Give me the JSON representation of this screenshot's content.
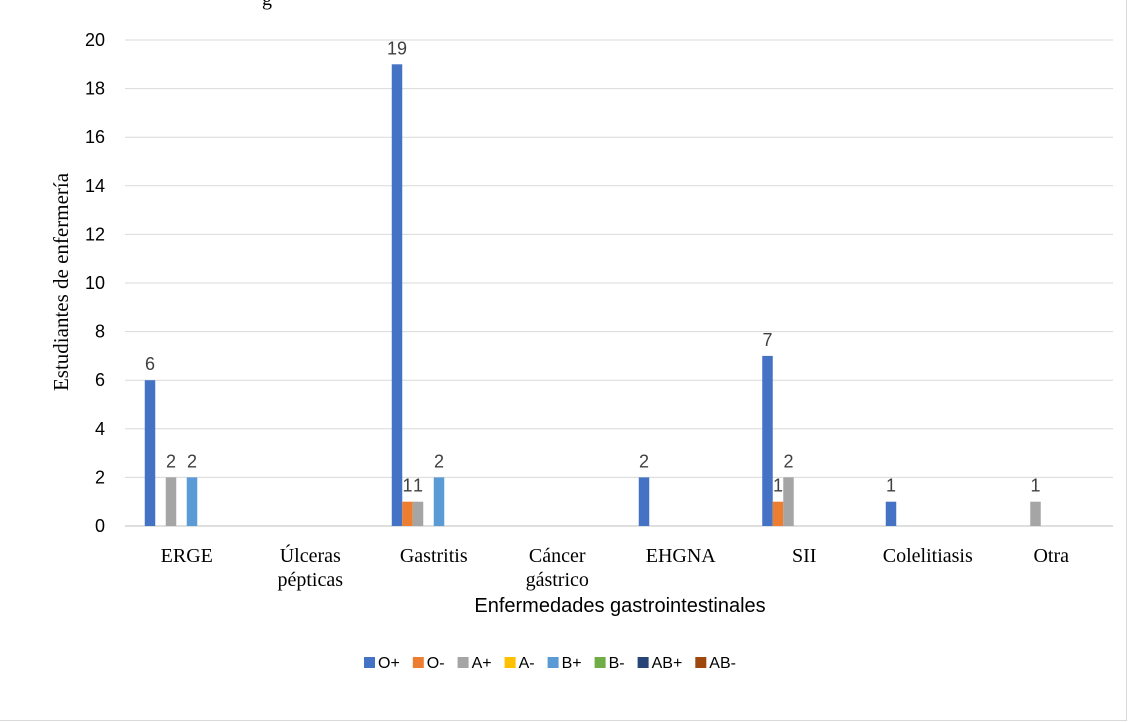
{
  "chart_data": {
    "type": "bar",
    "title_fragment": "g",
    "xlabel": "Enfermedades gastrointestinales",
    "ylabel": "Estudiantes de enfermería",
    "ylim": [
      0,
      20
    ],
    "yticks": [
      0,
      2,
      4,
      6,
      8,
      10,
      12,
      14,
      16,
      18,
      20
    ],
    "grid": true,
    "legend_position": "bottom",
    "categories": [
      [
        "ERGE"
      ],
      [
        "Úlceras",
        "pépticas"
      ],
      [
        "Gastritis"
      ],
      [
        "Cáncer",
        "gástrico"
      ],
      [
        "EHGNA"
      ],
      [
        "SII"
      ],
      [
        "Colelitiasis"
      ],
      [
        "Otra"
      ]
    ],
    "series": [
      {
        "name": "O+",
        "color": "#4472c4",
        "values": [
          6,
          0,
          19,
          0,
          2,
          7,
          1,
          0
        ]
      },
      {
        "name": "O-",
        "color": "#ed7d31",
        "values": [
          0,
          0,
          1,
          0,
          0,
          1,
          0,
          0
        ]
      },
      {
        "name": "A+",
        "color": "#a5a5a5",
        "values": [
          2,
          0,
          1,
          0,
          0,
          2,
          0,
          1
        ]
      },
      {
        "name": "A-",
        "color": "#ffc000",
        "values": [
          0,
          0,
          0,
          0,
          0,
          0,
          0,
          0
        ]
      },
      {
        "name": "B+",
        "color": "#5b9bd5",
        "values": [
          2,
          0,
          2,
          0,
          0,
          0,
          0,
          0
        ]
      },
      {
        "name": "B-",
        "color": "#70ad47",
        "values": [
          0,
          0,
          0,
          0,
          0,
          0,
          0,
          0
        ]
      },
      {
        "name": "AB+",
        "color": "#264478",
        "values": [
          0,
          0,
          0,
          0,
          0,
          0,
          0,
          0
        ]
      },
      {
        "name": "AB-",
        "color": "#9e480e",
        "values": [
          0,
          0,
          0,
          0,
          0,
          0,
          0,
          0
        ]
      }
    ]
  }
}
